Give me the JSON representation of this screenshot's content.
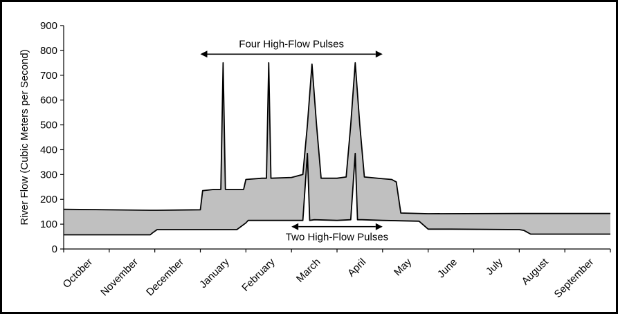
{
  "chart_data": {
    "type": "area",
    "title": "",
    "xlabel": "",
    "ylabel": "River Flow (Cubic Meters per Second)",
    "ylim": [
      0,
      900
    ],
    "yticks": [
      "0",
      "100",
      "200",
      "300",
      "400",
      "500",
      "600",
      "700",
      "800",
      "900"
    ],
    "categories": [
      "October",
      "November",
      "December",
      "January",
      "February",
      "March",
      "April",
      "May",
      "June",
      "July",
      "August",
      "September"
    ],
    "grid": false,
    "legend": "none",
    "fill_color": "#c0c0c0",
    "line_color": "#000000",
    "series": [
      {
        "x": [
          0,
          1.9,
          2.05,
          3.0,
          3.05,
          3.3,
          3.45,
          3.5,
          3.55,
          3.95,
          4.0,
          4.35,
          4.45,
          4.5,
          4.55,
          5.0,
          5.25,
          5.35,
          5.45,
          5.55,
          5.65,
          6.0,
          6.2,
          6.3,
          6.4,
          6.5,
          6.6,
          7.0,
          7.2,
          7.3,
          7.4,
          8.0,
          10.0,
          10.2,
          10.3,
          12.0
        ],
        "values": [
          160,
          156,
          156,
          158,
          235,
          240,
          240,
          750,
          240,
          240,
          280,
          285,
          285,
          750,
          285,
          288,
          300,
          500,
          745,
          500,
          285,
          285,
          290,
          500,
          750,
          500,
          290,
          283,
          280,
          270,
          145,
          142,
          143,
          143,
          143,
          143
        ]
      },
      {
        "x": [
          0,
          1.9,
          1.95,
          2.05,
          2.1,
          3.8,
          4.0,
          4.05,
          5.0,
          5.25,
          5.35,
          5.4,
          5.5,
          6.0,
          6.3,
          6.4,
          6.45,
          6.55,
          7.0,
          7.8,
          8.0,
          8.5,
          10.0,
          10.1,
          10.25,
          10.3,
          12.0
        ],
        "values": [
          57,
          57,
          65,
          78,
          78,
          78,
          105,
          115,
          115,
          115,
          385,
          115,
          118,
          115,
          118,
          385,
          118,
          118,
          115,
          112,
          80,
          80,
          78,
          75,
          60,
          60,
          60
        ]
      }
    ],
    "annotations": [
      {
        "text": "Four High-Flow Pulses",
        "x_start": 3.0,
        "x_end": 7.0,
        "y": 785
      },
      {
        "text": "Two High-Flow Pulses",
        "x_start": 5.0,
        "x_end": 7.0,
        "y": 90
      }
    ]
  }
}
